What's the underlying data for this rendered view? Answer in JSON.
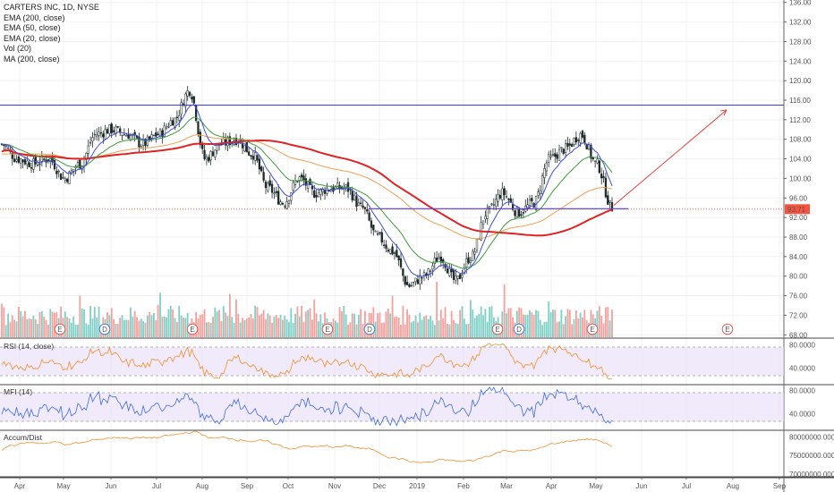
{
  "chart_data": {
    "type": "candlestick",
    "title": "CARTERS INC, 1D, NYSE",
    "indicators": [
      "EMA (200, close)",
      "EMA (50, close)",
      "EMA (20, close)",
      "Vol (20)",
      "MA (200, close)"
    ],
    "x_tick_labels": [
      "Apr",
      "May",
      "Jun",
      "Jul",
      "Aug",
      "Sep",
      "Oct",
      "Nov",
      "Dec",
      "2019",
      "Feb",
      "Mar",
      "Apr",
      "May",
      "Jun",
      "Jul",
      "Aug",
      "Sep"
    ],
    "price_axis": {
      "ticks": [
        "136.00",
        "132.00",
        "128.00",
        "124.00",
        "120.00",
        "116.00",
        "112.00",
        "108.00",
        "104.00",
        "100.00",
        "96.00",
        "92.00",
        "88.00",
        "84.00",
        "80.00",
        "76.00",
        "72.00",
        "68.00"
      ],
      "ylim": [
        67.5,
        136.5
      ],
      "last_price": "93.71"
    },
    "horizontal_levels": [
      {
        "name": "resistance",
        "value": 115.0,
        "color": "#3f3fe0"
      },
      {
        "name": "support",
        "value": 93.8,
        "color": "#3f3fe0"
      },
      {
        "name": "last-price",
        "value": 93.71,
        "color": "#f5533d"
      }
    ],
    "price_keypoints": [
      [
        "Apr",
        107
      ],
      [
        "Apr",
        104
      ],
      [
        "Apr",
        103
      ],
      [
        "May",
        104
      ],
      [
        "May",
        100
      ],
      [
        "May",
        103
      ],
      [
        "May",
        109
      ],
      [
        "Jun",
        110
      ],
      [
        "Jun",
        109
      ],
      [
        "Jun",
        107
      ],
      [
        "Jul",
        109
      ],
      [
        "Jul",
        112
      ],
      [
        "Jul",
        118
      ],
      [
        "Aug",
        104
      ],
      [
        "Aug",
        107
      ],
      [
        "Aug",
        108
      ],
      [
        "Aug",
        105
      ],
      [
        "Sep",
        98
      ],
      [
        "Sep",
        95
      ],
      [
        "Oct",
        100
      ],
      [
        "Oct",
        97
      ],
      [
        "Oct",
        98
      ],
      [
        "Nov",
        98
      ],
      [
        "Nov",
        94
      ],
      [
        "Nov",
        88
      ],
      [
        "Dec",
        85
      ],
      [
        "Dec",
        78
      ],
      [
        "Dec",
        80
      ],
      [
        "2019",
        84
      ],
      [
        "2019",
        79
      ],
      [
        "Feb",
        84
      ],
      [
        "Feb",
        93
      ],
      [
        "Feb",
        97
      ],
      [
        "Mar",
        93
      ],
      [
        "Mar",
        95
      ],
      [
        "Apr",
        104
      ],
      [
        "Apr",
        106
      ],
      [
        "May",
        109
      ],
      [
        "May",
        103
      ],
      [
        "May",
        94
      ]
    ],
    "forecast_arrow": {
      "from": [
        "May",
        94.5
      ],
      "to": [
        "Aug",
        114
      ]
    },
    "event_markers": [
      {
        "label": "E",
        "month": "May"
      },
      {
        "label": "D",
        "month": "Jun"
      },
      {
        "label": "E",
        "month": "Aug"
      },
      {
        "label": "E",
        "month": "Nov"
      },
      {
        "label": "D",
        "month": "Dec"
      },
      {
        "label": "E",
        "month": "Mar"
      },
      {
        "label": "D",
        "month": "Mar"
      },
      {
        "label": "E",
        "month": "May"
      },
      {
        "label": "E",
        "month": "Aug"
      }
    ],
    "panes": [
      {
        "name": "RSI (14, close)",
        "ticks": [
          "80.0000",
          "40.0000"
        ],
        "color": "#f28f2c"
      },
      {
        "name": "MFI (14)",
        "ticks": [
          "80.0000",
          "40.0000"
        ],
        "color": "#3d6ce0"
      },
      {
        "name": "Accum/Dist",
        "ticks": [
          "80000000.0000",
          "75000000.0000",
          "70000000.0000"
        ],
        "color": "#f28f2c"
      }
    ],
    "colors": {
      "up": "#26a69a",
      "down": "#ef5350",
      "candle": "#1e2a2a",
      "ema20": "#3e4fdc",
      "ema50": "#3f9b3f",
      "ema200": "#f0a050",
      "ma200": "#e02424",
      "band": "#e8dcf7"
    }
  }
}
